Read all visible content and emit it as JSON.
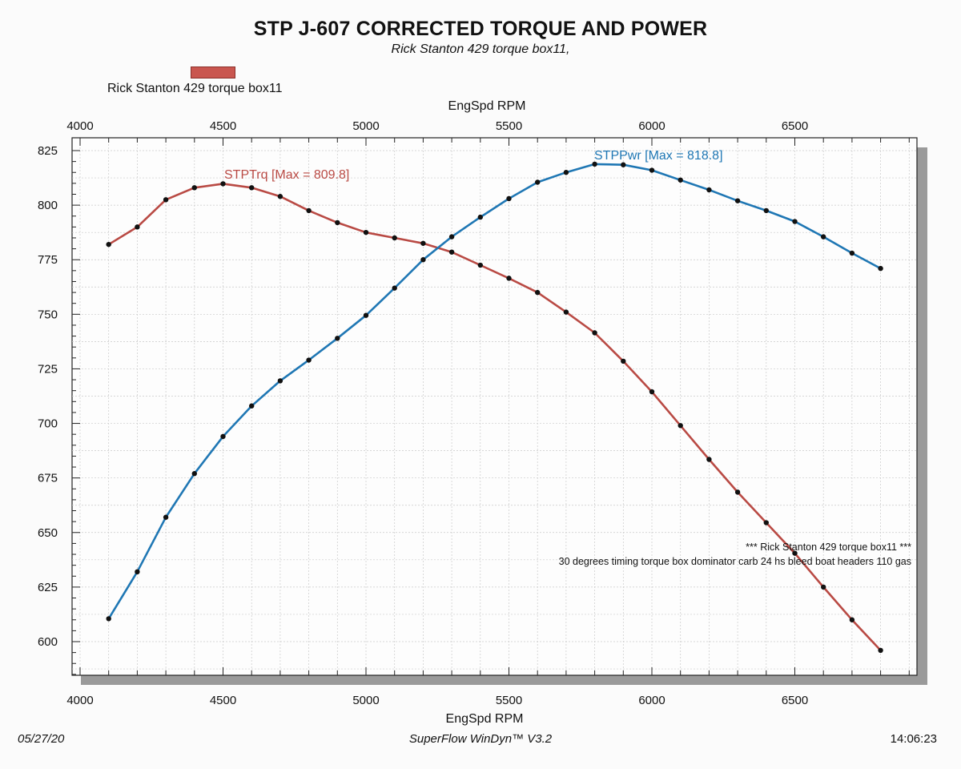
{
  "header": {
    "title": "STP J-607 CORRECTED TORQUE AND POWER",
    "subtitle": "Rick Stanton 429 torque box11,"
  },
  "legend": {
    "label": "Rick Stanton 429 torque box11",
    "color": "#c9564f"
  },
  "footer": {
    "date": "05/27/20",
    "software": "SuperFlow WinDyn™ V3.2",
    "time": "14:06:23"
  },
  "chart_data": {
    "type": "line",
    "title": "STP J-607 CORRECTED TORQUE AND POWER",
    "xlabel": "EngSpd RPM",
    "ylabel": "",
    "xlim": [
      4000,
      6900
    ],
    "ylim": [
      575,
      825
    ],
    "x_ticks": [
      4000,
      4500,
      5000,
      5500,
      6000,
      6500
    ],
    "y_ticks": [
      600,
      625,
      650,
      675,
      700,
      725,
      750,
      775,
      800,
      825
    ],
    "grid": true,
    "x": [
      4100,
      4200,
      4300,
      4400,
      4500,
      4600,
      4700,
      4800,
      4900,
      5000,
      5100,
      5200,
      5300,
      5400,
      5500,
      5600,
      5700,
      5800,
      5900,
      6000,
      6100,
      6200,
      6300,
      6400,
      6500,
      6600,
      6700,
      6800
    ],
    "series": [
      {
        "name": "STPTrq",
        "color": "#b94a44",
        "max_label": "STPTrq [Max = 809.8]",
        "values": [
          782,
          790,
          802.5,
          808,
          809.8,
          808,
          804,
          797.5,
          792,
          787.5,
          785,
          782.5,
          778.5,
          772.5,
          766.5,
          760,
          751,
          741.5,
          728.5,
          714.5,
          699,
          683.5,
          668.5,
          654.5,
          640.5,
          625,
          610,
          596
        ]
      },
      {
        "name": "STPPwr",
        "color": "#1f77b4",
        "max_label": "STPPwr [Max = 818.8]",
        "values": [
          610.5,
          632,
          657,
          677,
          694,
          708,
          719.5,
          729,
          739,
          749.5,
          762,
          775,
          785.5,
          794.5,
          803,
          810.5,
          815,
          818.8,
          818.5,
          816,
          811.5,
          807,
          802,
          797.5,
          792.5,
          785.5,
          778,
          771
        ]
      }
    ],
    "annotations": [
      "*** Rick Stanton 429 torque box11 ***",
      "30 degrees timing torque box dominator carb 24 hs bleed boat headers 110 gas"
    ]
  }
}
